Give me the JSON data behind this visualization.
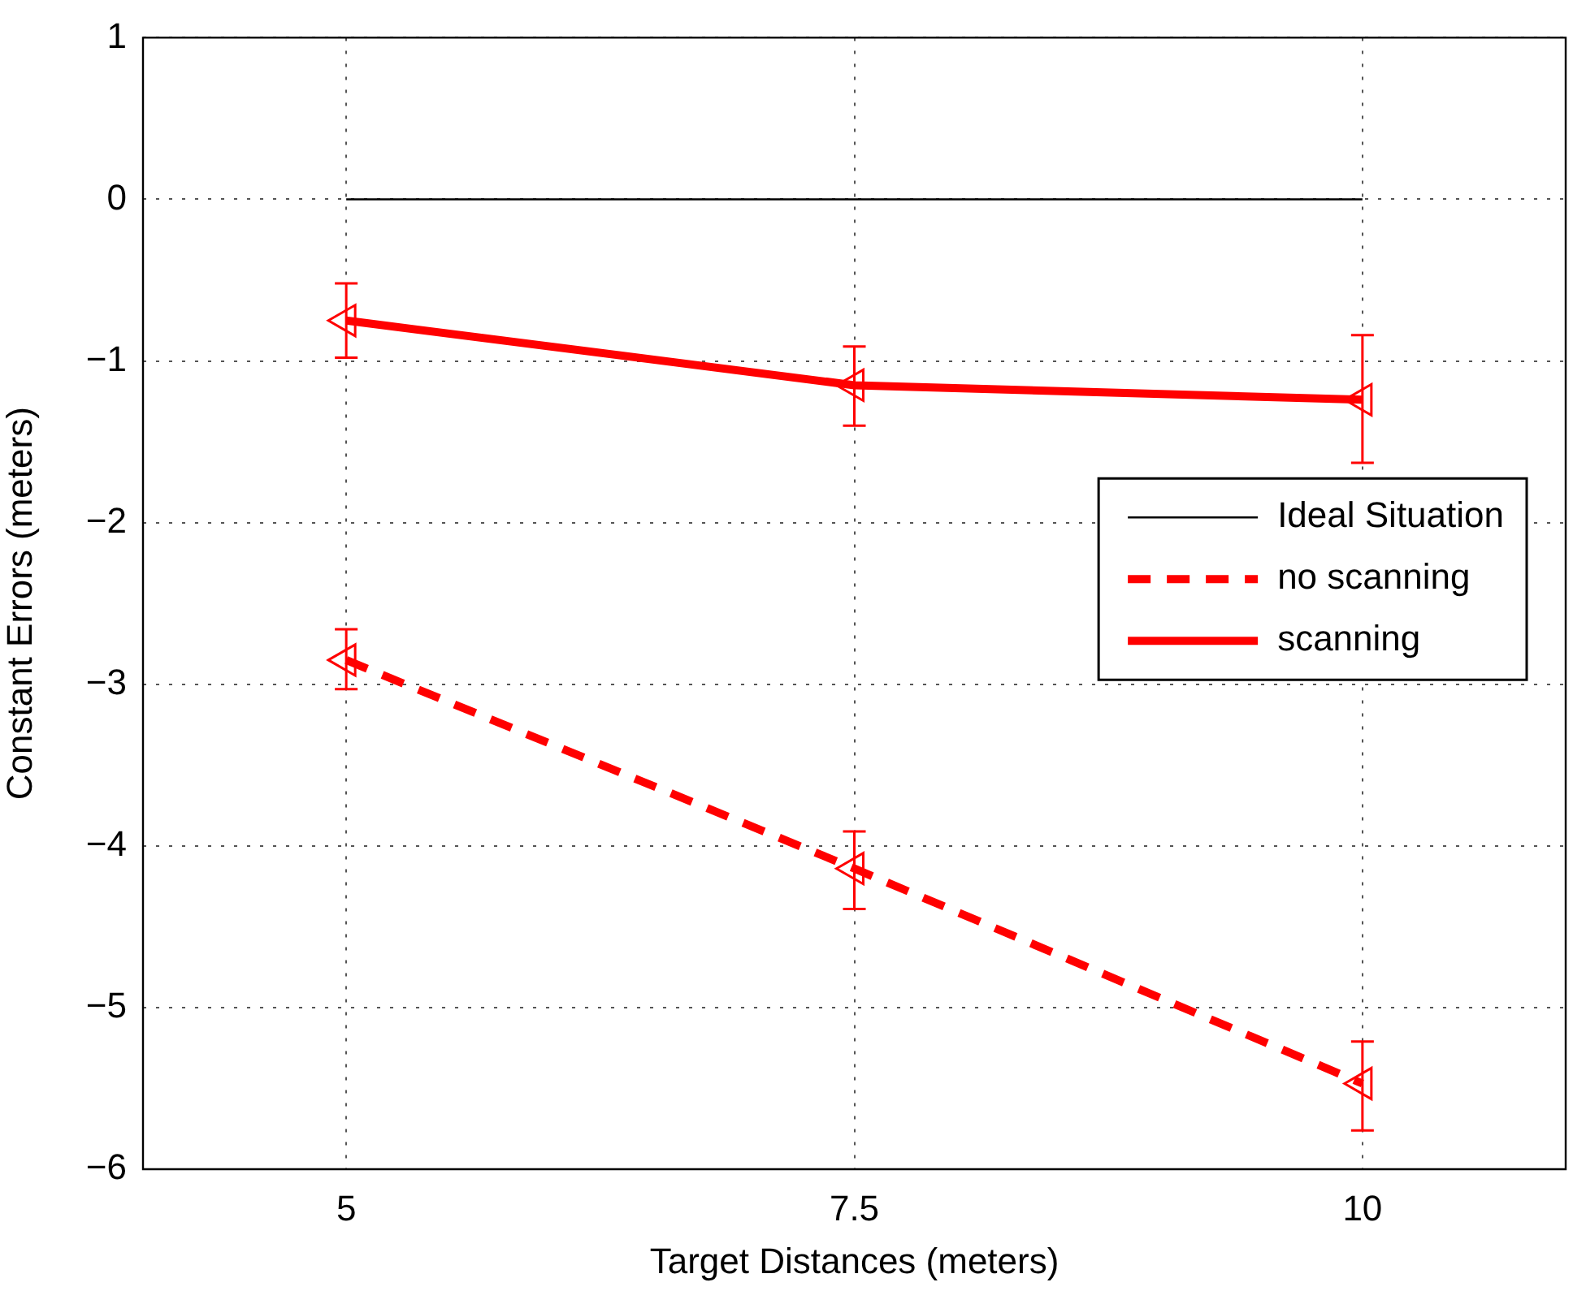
{
  "chart_data": {
    "type": "line",
    "xlabel": "Target Distances (meters)",
    "ylabel": "Constant Errors (meters)",
    "xlim": [
      4,
      11
    ],
    "xticks": [
      5,
      7.5,
      10
    ],
    "ylim": [
      -6,
      1
    ],
    "yticks": [
      -6,
      -5,
      -4,
      -3,
      -2,
      -1,
      0,
      1
    ],
    "grid": true,
    "legend": "right",
    "marker": "triangle",
    "series": [
      {
        "name": "Ideal Situation",
        "color": "#000000",
        "x": [
          5,
          7.5,
          10
        ],
        "values": [
          0,
          0,
          0
        ],
        "marker": "none",
        "line_style": "solid"
      },
      {
        "name": "no scanning",
        "color": "#ff0000",
        "x": [
          5,
          7.5,
          10
        ],
        "values": [
          -2.85,
          -4.14,
          -5.47
        ],
        "errors": [
          [
            -3.03,
            -2.66
          ],
          [
            -4.39,
            -3.91
          ],
          [
            -5.76,
            -5.21
          ]
        ],
        "line_style": "dashed"
      },
      {
        "name": "scanning",
        "color": "#ff0000",
        "x": [
          5,
          7.5,
          10
        ],
        "values": [
          -0.75,
          -1.15,
          -1.24
        ],
        "errors": [
          [
            -0.98,
            -0.52
          ],
          [
            -1.4,
            -0.91
          ],
          [
            -1.63,
            -0.84
          ]
        ],
        "line_style": "solid"
      }
    ]
  }
}
